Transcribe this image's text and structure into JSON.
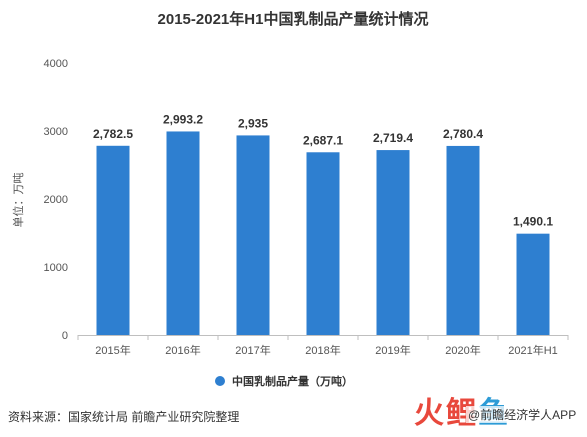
{
  "chart_data": {
    "type": "bar",
    "title": "2015-2021年H1中国乳制品产量统计情况",
    "ylabel": "单位：万吨",
    "categories": [
      "2015年",
      "2016年",
      "2017年",
      "2018年",
      "2019年",
      "2020年",
      "2021年H1"
    ],
    "series": [
      {
        "name": "中国乳制品产量（万吨）",
        "values": [
          2782.5,
          2993.2,
          2935,
          2687.1,
          2719.4,
          2780.4,
          1490.1
        ],
        "labels": [
          "2,782.5",
          "2,993.2",
          "2,935",
          "2,687.1",
          "2,719.4",
          "2,780.4",
          "1,490.1"
        ],
        "color": "#2e7fd0"
      }
    ],
    "ylim": [
      0,
      4000
    ],
    "yticks": [
      0,
      1000,
      2000,
      3000,
      4000
    ],
    "grid": false,
    "legend_position": "bottom"
  },
  "footer": {
    "source": "资料来源：国家统计局 前瞻产业研究院整理"
  },
  "brand": {
    "logo_chars": [
      "火",
      "鲤",
      "鱼"
    ],
    "text": "@前瞻经济学人APP"
  }
}
